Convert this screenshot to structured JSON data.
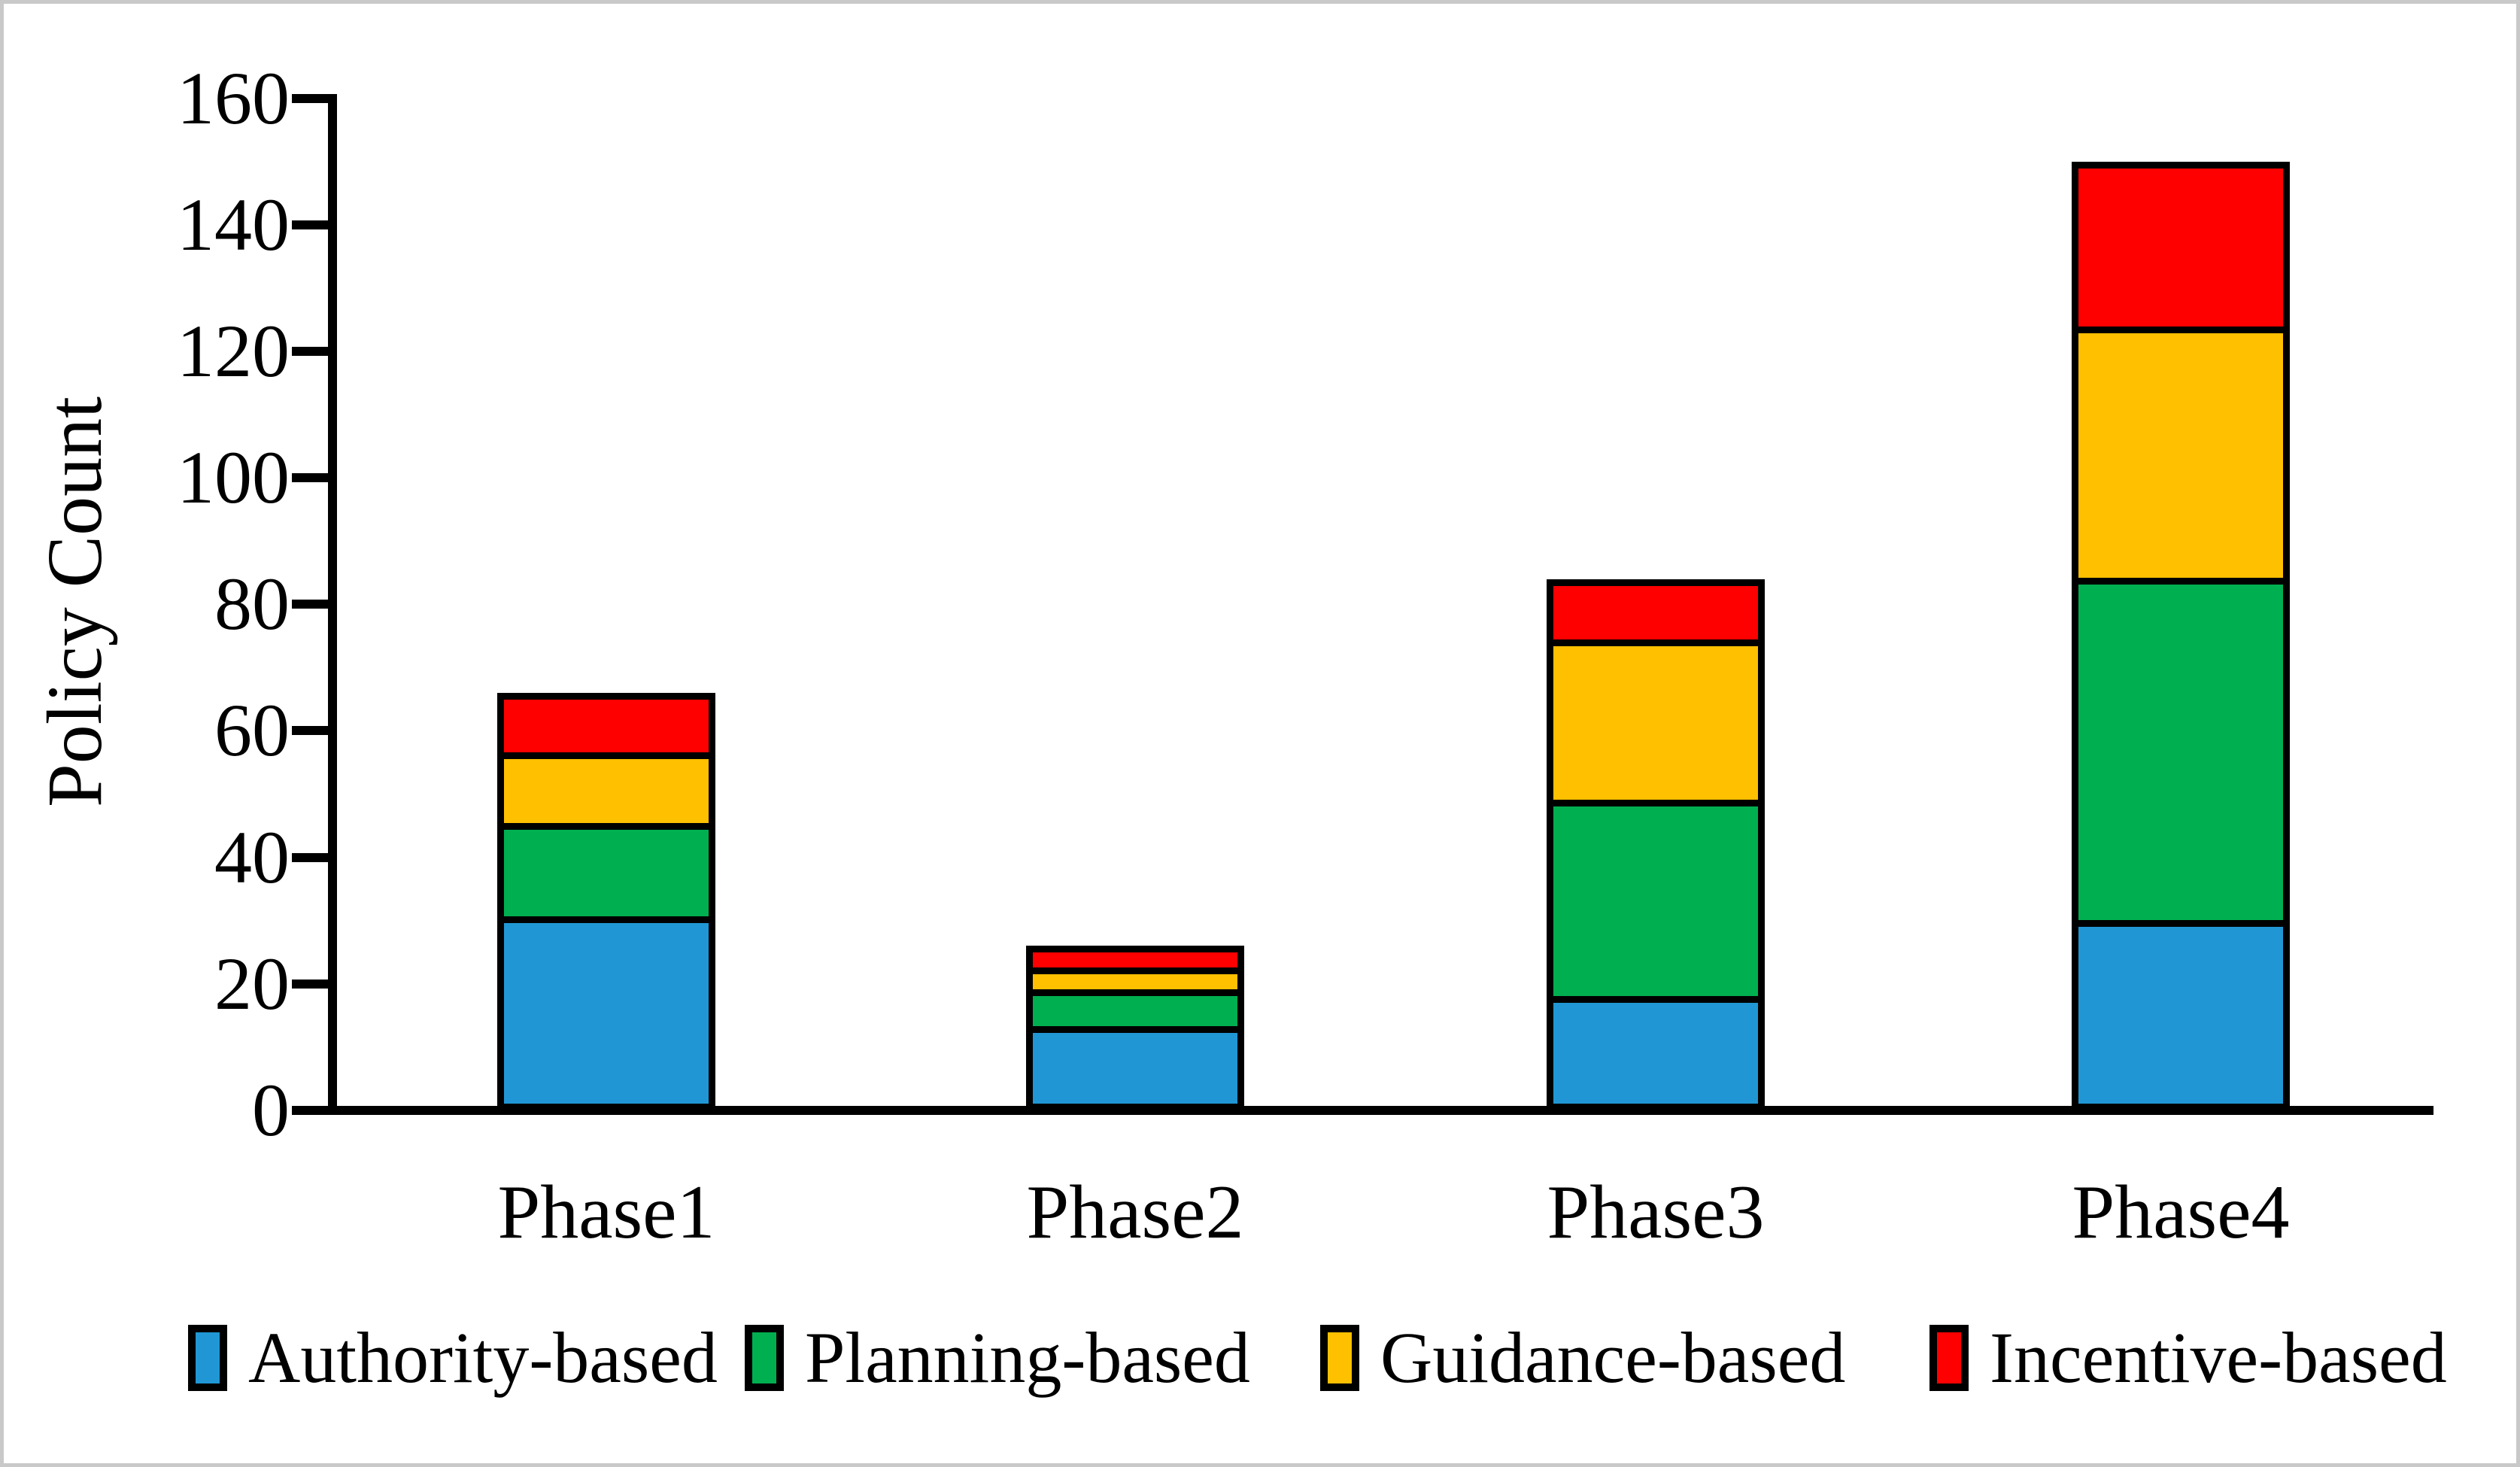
{
  "figure": {
    "background": "#ffffff",
    "border_color": "#c9c9c9"
  },
  "chart_data": {
    "type": "bar",
    "stacked": true,
    "categories": [
      "Phase1",
      "Phase2",
      "Phase3",
      "Phase4"
    ],
    "series": [
      {
        "name": "Authority-based",
        "color": "#2097D4",
        "values": [
          31,
          14,
          17,
          29
        ]
      },
      {
        "name": "Planning-based",
        "color": "#00AF50",
        "values": [
          15,
          6,
          32,
          55
        ]
      },
      {
        "name": "Guidance-based",
        "color": "#FFC000",
        "values": [
          11,
          3,
          26,
          40
        ]
      },
      {
        "name": "Incentive-based",
        "color": "#FF0000",
        "values": [
          9,
          3,
          9,
          26
        ]
      }
    ],
    "totals": [
      66,
      26,
      84,
      150
    ],
    "ylabel": "Policy Count",
    "xlabel": "",
    "ylim": [
      0,
      160
    ],
    "yticks": [
      0,
      20,
      40,
      60,
      80,
      100,
      120,
      140,
      160
    ],
    "grid": false,
    "legend_position": "bottom",
    "bar_border_color": "#000000",
    "axis_color": "#000000"
  }
}
